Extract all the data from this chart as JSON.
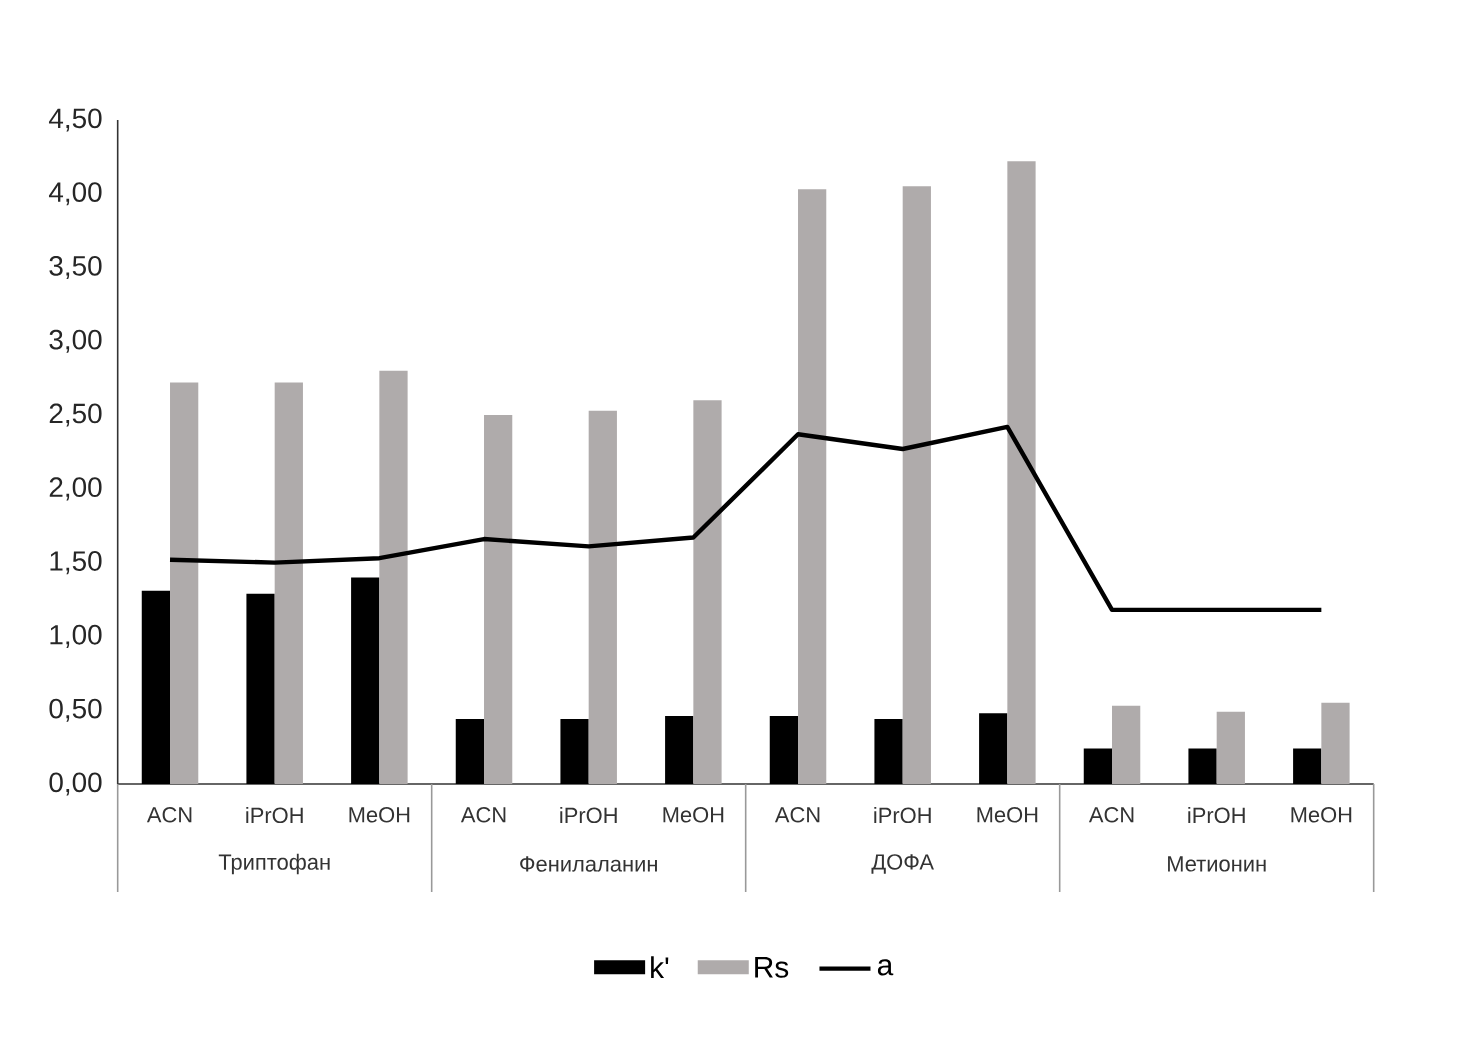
{
  "chart_data": {
    "type": "bar",
    "categories": [
      "ACN",
      "iPrOH",
      "MeOH",
      "ACN",
      "iPrOH",
      "MeOH",
      "ACN",
      "iPrOH",
      "MeOH",
      "ACN",
      "iPrOH",
      "MeOH"
    ],
    "annotations": [
      "Триптофан",
      "Фенилаланин",
      "ДОФА",
      "Метионин"
    ],
    "series": [
      {
        "name": "k'",
        "color": "#000000",
        "values": [
          1.31,
          1.29,
          1.4,
          0.44,
          0.44,
          0.46,
          0.46,
          0.44,
          0.48,
          0.24,
          0.24,
          0.24
        ]
      },
      {
        "name": "Rs",
        "color": "#afabab",
        "values": [
          2.72,
          2.72,
          2.8,
          2.5,
          2.53,
          2.6,
          4.03,
          4.05,
          4.22,
          0.53,
          0.49,
          0.55
        ]
      },
      {
        "name": "a",
        "type": "line",
        "color": "#000000",
        "values": [
          1.52,
          1.5,
          1.53,
          1.66,
          1.61,
          1.67,
          2.37,
          2.27,
          2.42,
          1.18,
          1.18,
          1.18
        ]
      }
    ],
    "ylim": [
      0,
      4.5
    ],
    "yticks": [
      {
        "value": 0,
        "label": "0,00"
      },
      {
        "value": 0.5,
        "label": "0,50"
      },
      {
        "value": 1,
        "label": "1,00"
      },
      {
        "value": 1.5,
        "label": "1,50"
      },
      {
        "value": 2,
        "label": "2,00"
      },
      {
        "value": 2.5,
        "label": "2,50"
      },
      {
        "value": 3,
        "label": "3,00"
      },
      {
        "value": 3.5,
        "label": "3,50"
      },
      {
        "value": 4,
        "label": "4,00"
      },
      {
        "value": 4.5,
        "label": "4,50"
      }
    ],
    "legend": "bottom",
    "line_style": "solid"
  }
}
